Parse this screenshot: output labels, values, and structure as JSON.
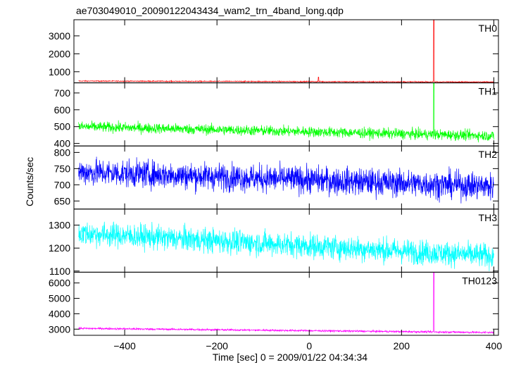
{
  "title": "ae703049010_20090122043434_wam2_trn_4band_long.qdp",
  "ylabel": "Counts/sec",
  "xlabel": "Time [sec] 0 = 2009/01/22 04:34:34",
  "chart_data": {
    "type": "line",
    "x_range": [
      -510,
      410
    ],
    "x_ticks": [
      -400,
      -200,
      0,
      200,
      400
    ],
    "x_tick_labels": [
      "−400",
      "−200",
      "0",
      "200",
      "400"
    ],
    "panels": [
      {
        "name": "TH0",
        "color": "#ff0000",
        "ylim": [
          380,
          3900
        ],
        "y_ticks": [
          1000,
          2000,
          3000
        ],
        "y_tick_labels": [
          "1000",
          "2000",
          "3000"
        ],
        "base_start": 480,
        "base_end": 430,
        "noise": 18,
        "spikes": [
          {
            "t": 20,
            "v": 700
          },
          {
            "t": 270,
            "v": 3900
          }
        ]
      },
      {
        "name": "TH1",
        "color": "#00ff00",
        "ylim": [
          385,
          760
        ],
        "y_ticks": [
          400,
          500,
          600,
          700
        ],
        "y_tick_labels": [
          "400",
          "500",
          "600",
          "700"
        ],
        "base_start": 500,
        "base_end": 445,
        "noise": 22,
        "spikes": [
          {
            "t": 270,
            "v": 760
          }
        ]
      },
      {
        "name": "TH2",
        "color": "#0000ff",
        "ylim": [
          625,
          820
        ],
        "y_ticks": [
          650,
          700,
          750,
          800
        ],
        "y_tick_labels": [
          "650",
          "700",
          "750",
          "800"
        ],
        "base_start": 740,
        "base_end": 695,
        "noise": 30,
        "spikes": []
      },
      {
        "name": "TH3",
        "color": "#00ffff",
        "ylim": [
          1095,
          1370
        ],
        "y_ticks": [
          1100,
          1200,
          1300
        ],
        "y_tick_labels": [
          "1100",
          "1200",
          "1300"
        ],
        "base_start": 1265,
        "base_end": 1165,
        "noise": 38,
        "spikes": []
      },
      {
        "name": "TH0123",
        "color": "#ff00ff",
        "ylim": [
          2600,
          6700
        ],
        "y_ticks": [
          3000,
          4000,
          5000,
          6000
        ],
        "y_tick_labels": [
          "3000",
          "4000",
          "5000",
          "6000"
        ],
        "base_start": 3050,
        "base_end": 2780,
        "noise": 45,
        "spikes": [
          {
            "t": 270,
            "v": 6700
          }
        ]
      }
    ]
  }
}
